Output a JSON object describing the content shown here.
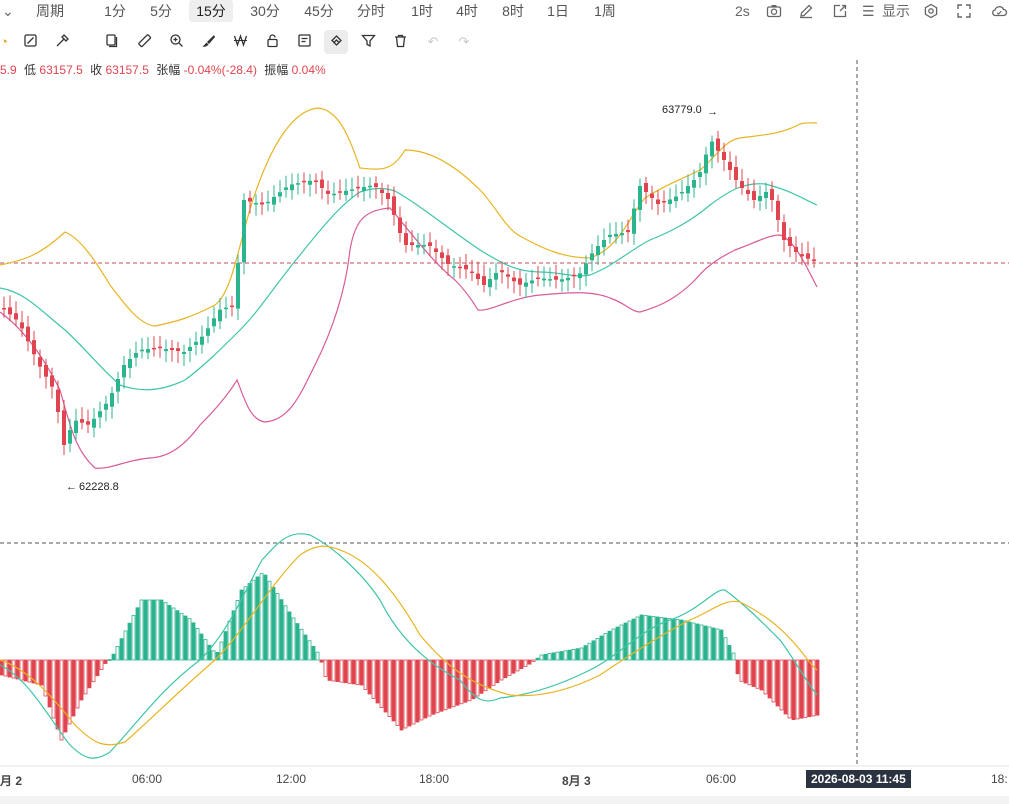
{
  "topbar": {
    "periods": [
      "周期",
      "1分",
      "5分",
      "15分",
      "30分",
      "45分",
      "分时",
      "1时",
      "4时",
      "8时",
      "1日",
      "1周"
    ],
    "active_period": "15分",
    "interval": "2s",
    "display_label": "显示"
  },
  "ohlc": {
    "high_value_partial": "5.9",
    "low_label": "低",
    "low_value": "63157.5",
    "close_label": "收",
    "close_value": "63157.5",
    "change_label": "张幅",
    "change_value": "-0.04%(-28.4)",
    "amplitude_label": "振幅",
    "amplitude_value": "0.04%"
  },
  "chart_data": {
    "type": "candlestick",
    "price_high_marker": "63779.0",
    "price_low_marker": "62228.8",
    "x_ticks": [
      "月 2",
      "06:00",
      "12:00",
      "18:00",
      "8月 3",
      "06:00",
      "18:"
    ],
    "crosshair_time": "2026-08-03 11:45",
    "colors": {
      "up": "#2bb48e",
      "down": "#e0454f",
      "upper_band": "#e8b422",
      "mid_band": "#3fc5a8",
      "lower_band": "#d85b9a"
    }
  }
}
